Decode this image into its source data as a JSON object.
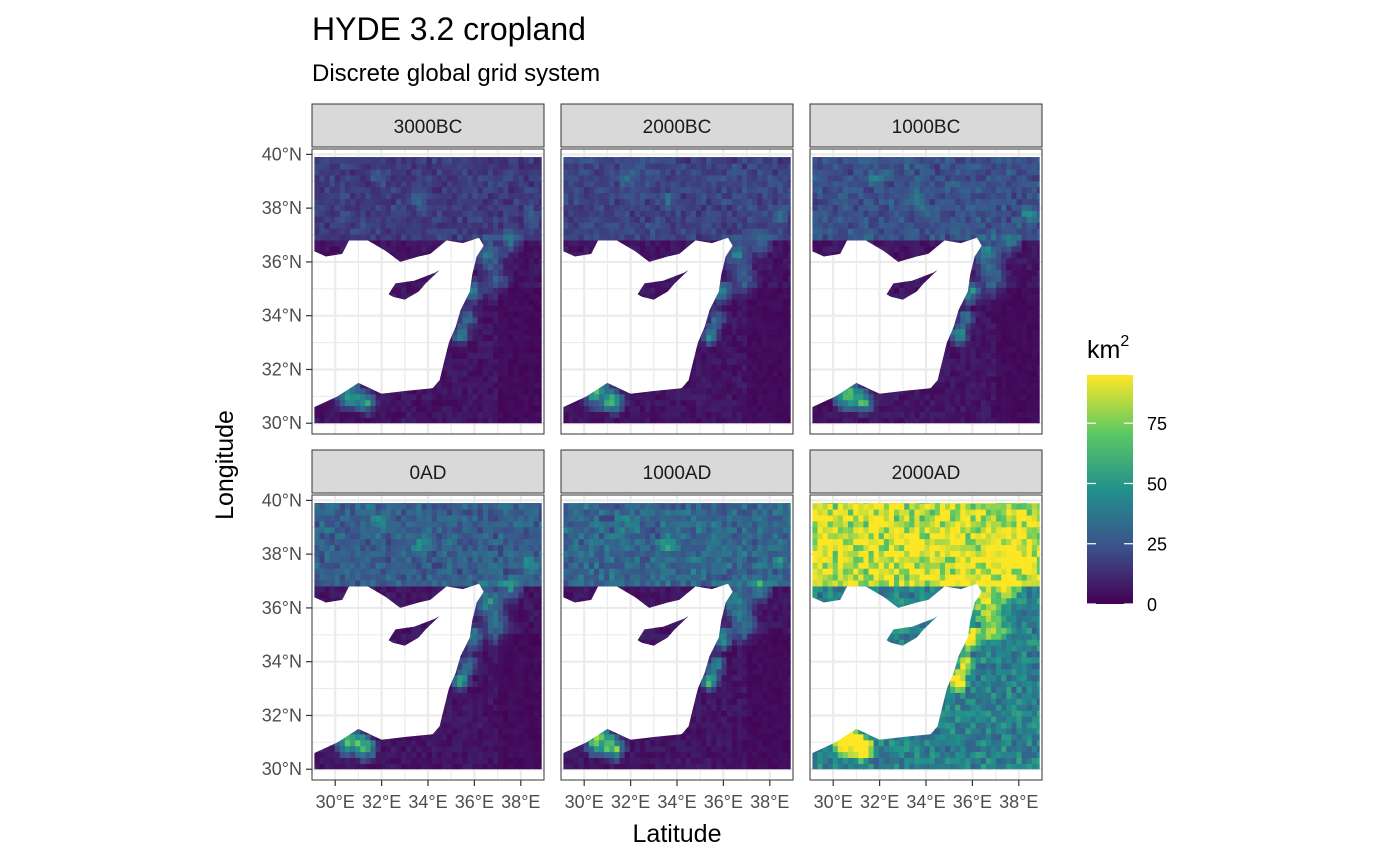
{
  "title": "HYDE 3.2 cropland",
  "subtitle": "Discrete global grid system",
  "chart_data": {
    "type": "heatmap",
    "xlabel": "Latitude",
    "ylabel": "Longitude",
    "x_ticks": [
      "30°E",
      "32°E",
      "34°E",
      "36°E",
      "38°E"
    ],
    "y_ticks": [
      "30°N",
      "32°N",
      "34°N",
      "36°N",
      "38°N",
      "40°N"
    ],
    "x_range": [
      29,
      39
    ],
    "y_range": [
      29.6,
      40.2
    ],
    "facets": [
      "3000BC",
      "2000BC",
      "1000BC",
      "0AD",
      "1000AD",
      "2000AD"
    ],
    "legend": {
      "title": "km",
      "title_sup": "2",
      "breaks": [
        0,
        25,
        50,
        75
      ],
      "range": [
        0,
        95
      ],
      "colors": [
        "#440154",
        "#3b528b",
        "#21918c",
        "#5ec962",
        "#fde725"
      ]
    },
    "intensity": [
      0.15,
      0.18,
      0.24,
      0.3,
      0.34,
      0.62
    ]
  }
}
